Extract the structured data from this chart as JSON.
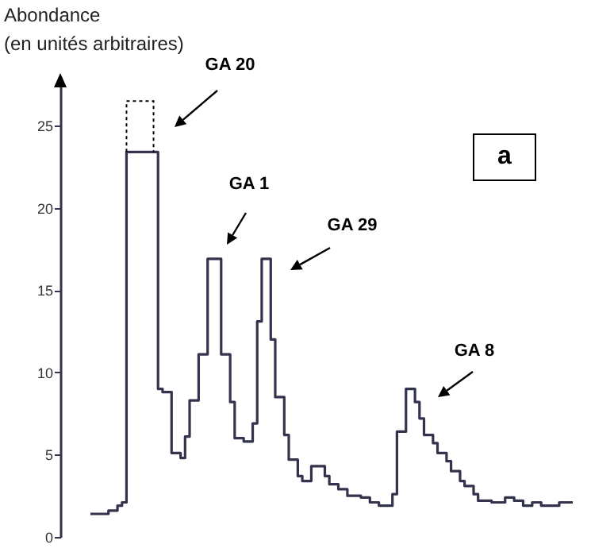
{
  "chart_data": {
    "type": "step",
    "ylabel": "Abondance\n(en unités arbitraires)",
    "categories": [
      null,
      null,
      null,
      null,
      null,
      null,
      null,
      null,
      null,
      null,
      null,
      null,
      null,
      null,
      null,
      null,
      null,
      null,
      null,
      null,
      null,
      null,
      null,
      null,
      null,
      null,
      null,
      null,
      null,
      null,
      null,
      null,
      null,
      null,
      null,
      null,
      null,
      null,
      null,
      null,
      null,
      null,
      null,
      null,
      null,
      null,
      null,
      null,
      null,
      null,
      null,
      null,
      null,
      null,
      null,
      null,
      null,
      null,
      null,
      null,
      null,
      null,
      null,
      null,
      null,
      null,
      null,
      null,
      null,
      null,
      null,
      null,
      null,
      null,
      null,
      null,
      null,
      null,
      null,
      null,
      null,
      null,
      null,
      null,
      null,
      null,
      null,
      null,
      null,
      null,
      null,
      null,
      null,
      null,
      null,
      null,
      null,
      null,
      null,
      null,
      null,
      null,
      null,
      null,
      null,
      null,
      null,
      null
    ],
    "values": [
      1.4,
      1.4,
      1.4,
      1.4,
      1.6,
      1.6,
      1.9,
      2.1,
      23.4,
      23.4,
      23.4,
      23.4,
      23.4,
      23.4,
      23.4,
      9.0,
      8.8,
      8.8,
      5.1,
      5.1,
      4.8,
      6.1,
      8.3,
      8.3,
      11.1,
      11.1,
      16.9,
      16.9,
      16.9,
      11.1,
      11.1,
      8.2,
      6.0,
      6.0,
      5.8,
      5.8,
      6.9,
      13.1,
      16.9,
      16.9,
      12.0,
      8.5,
      8.5,
      6.2,
      4.7,
      4.7,
      3.7,
      3.4,
      3.4,
      4.3,
      4.3,
      4.3,
      3.7,
      3.2,
      3.2,
      2.9,
      2.9,
      2.5,
      2.5,
      2.5,
      2.4,
      2.4,
      2.1,
      2.1,
      1.9,
      1.9,
      1.9,
      2.6,
      6.4,
      6.4,
      9.0,
      9.0,
      8.2,
      7.2,
      6.2,
      6.2,
      5.7,
      5.1,
      5.1,
      4.6,
      4.0,
      4.0,
      3.4,
      3.1,
      3.1,
      2.6,
      2.2,
      2.2,
      2.2,
      2.1,
      2.1,
      2.1,
      2.4,
      2.4,
      2.2,
      2.2,
      1.9,
      1.9,
      2.1,
      2.1,
      1.9,
      1.9,
      1.9,
      1.9,
      2.1,
      2.1,
      2.1,
      2.1
    ],
    "color": "#33334d",
    "ylim": [
      0,
      28
    ],
    "yticks": [
      0,
      5,
      10,
      15,
      20,
      25
    ],
    "tick_labels": "y",
    "annotations": [
      "GA 20",
      "GA 1",
      "GA 29",
      "GA 8",
      "a"
    ]
  }
}
